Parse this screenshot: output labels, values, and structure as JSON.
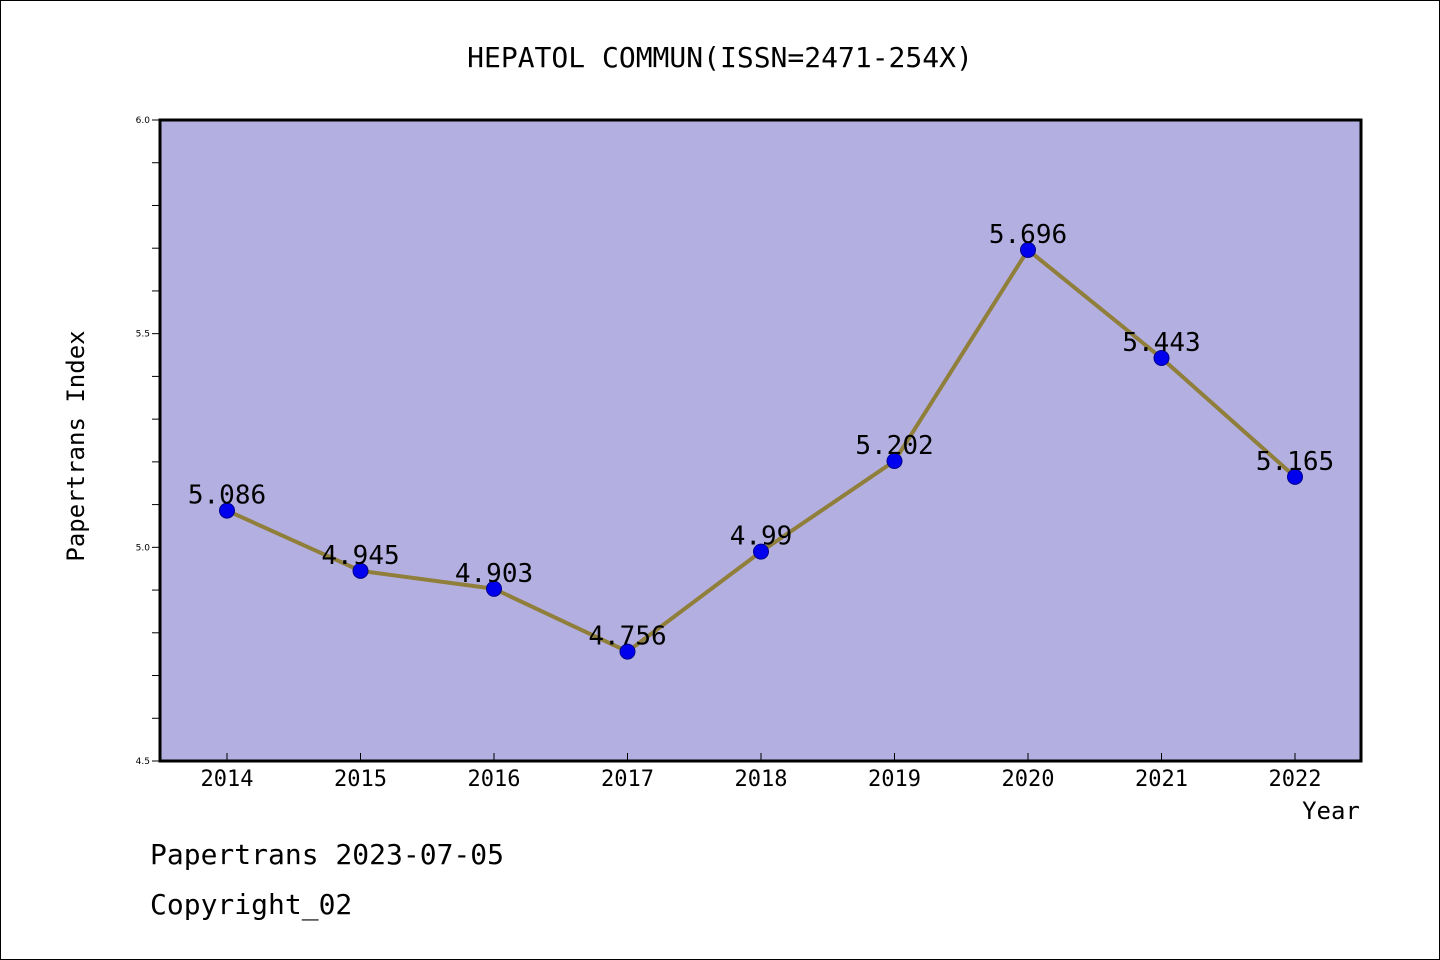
{
  "chart_data": {
    "type": "line",
    "title": "HEPATOL COMMUN(ISSN=2471-254X)",
    "xlabel": "Year",
    "ylabel": "Papertrans Index",
    "categories": [
      "2014",
      "2015",
      "2016",
      "2017",
      "2018",
      "2019",
      "2020",
      "2021",
      "2022"
    ],
    "values": [
      5.086,
      4.945,
      4.903,
      4.756,
      4.99,
      5.202,
      5.696,
      5.443,
      5.165
    ],
    "data_labels": [
      "5.086",
      "4.945",
      "4.903",
      "4.756",
      "4.99",
      "5.202",
      "5.696",
      "5.443",
      "5.165"
    ],
    "ylim": [
      4.5,
      6.0
    ],
    "yticks": [
      "4.5",
      "5.0",
      "5.5",
      "6.0"
    ],
    "grid": false,
    "colors": {
      "plot_background": "#b4afe1",
      "line": "#8f7f3a",
      "marker": "#0000ee",
      "marker_edge": "#00008b"
    }
  },
  "footer": {
    "line1": "Papertrans 2023-07-05",
    "line2": "Copyright_02"
  }
}
